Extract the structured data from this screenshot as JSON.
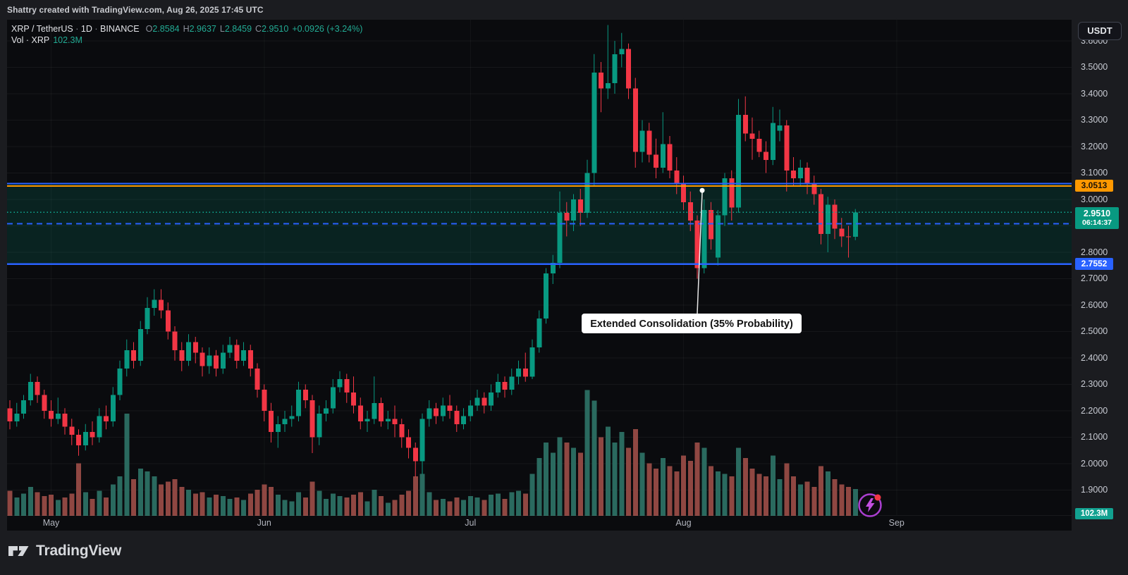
{
  "header": {
    "attribution": "Shattry created with TradingView.com, Aug 26, 2025 17:45 UTC"
  },
  "legend": {
    "symbol": "XRP / TetherUS",
    "separator": "·",
    "interval": "1D",
    "exchange": "BINANCE",
    "o_label": "O",
    "o_value": "2.8584",
    "h_label": "H",
    "h_value": "2.9637",
    "l_label": "L",
    "l_value": "2.8459",
    "c_label": "C",
    "c_value": "2.9510",
    "change": "+0.0926 (+3.24%)",
    "vol_label": "Vol · XRP",
    "vol_value": "102.3M"
  },
  "axis": {
    "currency_button": "USDT",
    "badges": {
      "resistance": "3.0513",
      "current_price": "2.9510",
      "countdown": "06:14:37",
      "support": "2.7552",
      "volume": "102.3M"
    }
  },
  "annotation": {
    "text": "Extended Consolidation (35% Probability)",
    "anchor_price": 3.034
  },
  "footer": {
    "brand": "TradingView"
  },
  "chart_data": {
    "type": "candlestick",
    "title": "XRP / TetherUS · 1D · BINANCE",
    "quote_currency": "USDT",
    "legend_position": "top-left",
    "grid": true,
    "price_axis": {
      "min": 1.9,
      "max": 3.6,
      "step": 0.1,
      "decimals": 4
    },
    "time_axis": {
      "months": [
        "May",
        "Jun",
        "Jul",
        "Aug",
        "Sep"
      ],
      "month_start_indices": [
        6,
        37,
        67,
        98,
        129
      ]
    },
    "last_bar": {
      "open": 2.8584,
      "high": 2.9637,
      "low": 2.8459,
      "close": 2.951,
      "change": 0.0926,
      "change_pct": 3.24,
      "volume_label": "102.3M"
    },
    "colors": {
      "up": "#089981",
      "down": "#f23645",
      "vol_up": "#2a6a5f",
      "vol_down": "#8f4742",
      "zone_fill": "rgba(8,153,129,0.17)",
      "blue_line": "#2962ff",
      "orange_line": "#ff9800",
      "teal_line": "#0fae96"
    },
    "levels": [
      {
        "name": "zone-top",
        "price": 3.06,
        "style": "solid",
        "color": "#2962ff",
        "width": 2.2
      },
      {
        "name": "alert-line",
        "price": 3.0513,
        "style": "solid",
        "color": "#ff9800",
        "width": 2
      },
      {
        "name": "current-price",
        "price": 2.951,
        "style": "dotted",
        "color": "#0fae96",
        "width": 1.6
      },
      {
        "name": "zone-midline",
        "price": 2.9076,
        "style": "dashed",
        "color": "#2962ff",
        "width": 2
      },
      {
        "name": "support",
        "price": 2.7552,
        "style": "solid",
        "color": "#2962ff",
        "width": 2.2
      }
    ],
    "zone": {
      "top": 3.06,
      "bottom": 2.7552
    },
    "candles_format": [
      "open",
      "high",
      "low",
      "close",
      "volume_millions"
    ],
    "candles": [
      [
        2.21,
        2.24,
        2.13,
        2.16,
        95
      ],
      [
        2.16,
        2.23,
        2.14,
        2.19,
        70
      ],
      [
        2.19,
        2.26,
        2.17,
        2.24,
        85
      ],
      [
        2.24,
        2.34,
        2.22,
        2.31,
        110
      ],
      [
        2.31,
        2.33,
        2.23,
        2.26,
        90
      ],
      [
        2.26,
        2.28,
        2.17,
        2.2,
        75
      ],
      [
        2.2,
        2.24,
        2.14,
        2.17,
        80
      ],
      [
        2.17,
        2.25,
        2.15,
        2.19,
        60
      ],
      [
        2.19,
        2.21,
        2.11,
        2.14,
        70
      ],
      [
        2.14,
        2.17,
        2.07,
        2.11,
        85
      ],
      [
        2.11,
        2.13,
        2.03,
        2.07,
        200
      ],
      [
        2.07,
        2.15,
        2.05,
        2.12,
        90
      ],
      [
        2.12,
        2.16,
        2.07,
        2.1,
        65
      ],
      [
        2.1,
        2.21,
        2.08,
        2.18,
        95
      ],
      [
        2.18,
        2.22,
        2.13,
        2.16,
        70
      ],
      [
        2.16,
        2.29,
        2.14,
        2.26,
        120
      ],
      [
        2.26,
        2.39,
        2.24,
        2.36,
        150
      ],
      [
        2.36,
        2.47,
        2.33,
        2.43,
        390
      ],
      [
        2.43,
        2.46,
        2.36,
        2.39,
        140
      ],
      [
        2.39,
        2.54,
        2.37,
        2.51,
        180
      ],
      [
        2.51,
        2.63,
        2.49,
        2.59,
        170
      ],
      [
        2.59,
        2.66,
        2.56,
        2.62,
        150
      ],
      [
        2.62,
        2.66,
        2.55,
        2.58,
        120
      ],
      [
        2.58,
        2.61,
        2.47,
        2.5,
        130
      ],
      [
        2.5,
        2.52,
        2.39,
        2.43,
        140
      ],
      [
        2.43,
        2.46,
        2.35,
        2.39,
        110
      ],
      [
        2.39,
        2.49,
        2.37,
        2.46,
        100
      ],
      [
        2.46,
        2.48,
        2.38,
        2.42,
        85
      ],
      [
        2.42,
        2.44,
        2.33,
        2.37,
        90
      ],
      [
        2.37,
        2.44,
        2.34,
        2.41,
        70
      ],
      [
        2.41,
        2.43,
        2.33,
        2.36,
        80
      ],
      [
        2.36,
        2.45,
        2.34,
        2.42,
        75
      ],
      [
        2.42,
        2.48,
        2.4,
        2.45,
        65
      ],
      [
        2.45,
        2.47,
        2.36,
        2.39,
        70
      ],
      [
        2.39,
        2.46,
        2.37,
        2.43,
        60
      ],
      [
        2.43,
        2.45,
        2.33,
        2.36,
        85
      ],
      [
        2.36,
        2.38,
        2.25,
        2.28,
        100
      ],
      [
        2.28,
        2.3,
        2.16,
        2.2,
        120
      ],
      [
        2.2,
        2.23,
        2.08,
        2.12,
        110
      ],
      [
        2.12,
        2.18,
        2.06,
        2.15,
        80
      ],
      [
        2.15,
        2.2,
        2.12,
        2.17,
        60
      ],
      [
        2.17,
        2.22,
        2.14,
        2.18,
        55
      ],
      [
        2.18,
        2.31,
        2.16,
        2.28,
        90
      ],
      [
        2.28,
        2.3,
        2.21,
        2.24,
        70
      ],
      [
        2.24,
        2.26,
        2.04,
        2.1,
        130
      ],
      [
        2.1,
        2.22,
        2.07,
        2.19,
        95
      ],
      [
        2.19,
        2.24,
        2.16,
        2.21,
        65
      ],
      [
        2.21,
        2.32,
        2.19,
        2.29,
        85
      ],
      [
        2.29,
        2.35,
        2.27,
        2.32,
        75
      ],
      [
        2.32,
        2.34,
        2.23,
        2.27,
        70
      ],
      [
        2.27,
        2.33,
        2.19,
        2.22,
        80
      ],
      [
        2.22,
        2.25,
        2.13,
        2.16,
        90
      ],
      [
        2.16,
        2.2,
        2.12,
        2.17,
        55
      ],
      [
        2.17,
        2.33,
        2.15,
        2.23,
        100
      ],
      [
        2.23,
        2.25,
        2.14,
        2.16,
        75
      ],
      [
        2.16,
        2.2,
        2.13,
        2.17,
        50
      ],
      [
        2.17,
        2.22,
        2.1,
        2.15,
        60
      ],
      [
        2.15,
        2.17,
        2.06,
        2.1,
        80
      ],
      [
        2.1,
        2.13,
        2.02,
        2.06,
        95
      ],
      [
        2.06,
        2.08,
        1.95,
        2.01,
        150
      ],
      [
        2.01,
        2.19,
        1.96,
        2.17,
        160
      ],
      [
        2.17,
        2.24,
        2.14,
        2.21,
        90
      ],
      [
        2.21,
        2.23,
        2.15,
        2.18,
        60
      ],
      [
        2.18,
        2.25,
        2.16,
        2.22,
        65
      ],
      [
        2.22,
        2.26,
        2.17,
        2.2,
        55
      ],
      [
        2.2,
        2.22,
        2.12,
        2.15,
        70
      ],
      [
        2.15,
        2.21,
        2.13,
        2.18,
        60
      ],
      [
        2.18,
        2.24,
        2.16,
        2.22,
        75
      ],
      [
        2.22,
        2.28,
        2.2,
        2.25,
        70
      ],
      [
        2.25,
        2.27,
        2.19,
        2.22,
        60
      ],
      [
        2.22,
        2.3,
        2.2,
        2.27,
        80
      ],
      [
        2.27,
        2.34,
        2.25,
        2.31,
        85
      ],
      [
        2.31,
        2.33,
        2.25,
        2.28,
        65
      ],
      [
        2.28,
        2.36,
        2.26,
        2.33,
        90
      ],
      [
        2.33,
        2.39,
        2.3,
        2.36,
        95
      ],
      [
        2.36,
        2.42,
        2.31,
        2.33,
        85
      ],
      [
        2.33,
        2.47,
        2.32,
        2.44,
        160
      ],
      [
        2.44,
        2.58,
        2.42,
        2.55,
        220
      ],
      [
        2.55,
        2.74,
        2.53,
        2.72,
        280
      ],
      [
        2.72,
        2.79,
        2.68,
        2.76,
        240
      ],
      [
        2.76,
        3.03,
        2.74,
        2.95,
        300
      ],
      [
        2.95,
        2.99,
        2.86,
        2.92,
        280
      ],
      [
        2.92,
        3.02,
        2.88,
        3.0,
        260
      ],
      [
        3.0,
        3.04,
        2.9,
        2.95,
        240
      ],
      [
        2.95,
        3.15,
        2.93,
        3.1,
        480
      ],
      [
        3.1,
        3.55,
        3.05,
        3.48,
        440
      ],
      [
        3.48,
        3.52,
        3.33,
        3.42,
        300
      ],
      [
        3.42,
        3.66,
        3.38,
        3.44,
        340
      ],
      [
        3.44,
        3.6,
        3.4,
        3.55,
        280
      ],
      [
        3.55,
        3.63,
        3.5,
        3.57,
        320
      ],
      [
        3.57,
        3.59,
        3.38,
        3.42,
        260
      ],
      [
        3.42,
        3.46,
        3.12,
        3.18,
        330
      ],
      [
        3.18,
        3.3,
        3.14,
        3.26,
        240
      ],
      [
        3.26,
        3.29,
        3.14,
        3.17,
        200
      ],
      [
        3.17,
        3.23,
        3.08,
        3.12,
        180
      ],
      [
        3.12,
        3.33,
        3.1,
        3.21,
        220
      ],
      [
        3.21,
        3.24,
        3.08,
        3.11,
        190
      ],
      [
        3.11,
        3.16,
        3.02,
        3.06,
        170
      ],
      [
        3.06,
        3.09,
        2.96,
        2.99,
        230
      ],
      [
        2.99,
        3.03,
        2.88,
        2.92,
        210
      ],
      [
        2.92,
        2.94,
        2.7,
        2.74,
        280
      ],
      [
        2.74,
        3.0,
        2.72,
        2.96,
        260
      ],
      [
        2.96,
        2.99,
        2.81,
        2.85,
        190
      ],
      [
        2.78,
        2.96,
        2.75,
        2.94,
        170
      ],
      [
        2.94,
        3.1,
        2.9,
        3.08,
        160
      ],
      [
        3.08,
        3.11,
        2.92,
        2.97,
        150
      ],
      [
        2.97,
        3.38,
        2.95,
        3.32,
        260
      ],
      [
        3.32,
        3.39,
        3.22,
        3.25,
        220
      ],
      [
        3.25,
        3.31,
        3.15,
        3.23,
        180
      ],
      [
        3.23,
        3.26,
        3.16,
        3.18,
        160
      ],
      [
        3.18,
        3.22,
        3.1,
        3.15,
        150
      ],
      [
        3.15,
        3.35,
        3.13,
        3.29,
        230
      ],
      [
        3.26,
        3.34,
        3.22,
        3.28,
        140
      ],
      [
        3.28,
        3.3,
        3.03,
        3.11,
        200
      ],
      [
        3.11,
        3.16,
        3.05,
        3.08,
        150
      ],
      [
        3.08,
        3.15,
        3.05,
        3.12,
        120
      ],
      [
        3.12,
        3.14,
        3.02,
        3.06,
        130
      ],
      [
        3.06,
        3.09,
        2.98,
        3.02,
        110
      ],
      [
        3.02,
        3.04,
        2.83,
        2.87,
        190
      ],
      [
        2.87,
        3.01,
        2.8,
        2.98,
        170
      ],
      [
        2.98,
        3.0,
        2.85,
        2.89,
        140
      ],
      [
        2.89,
        2.93,
        2.82,
        2.86,
        120
      ],
      [
        2.86,
        2.9,
        2.78,
        2.8584,
        110
      ],
      [
        2.8584,
        2.9637,
        2.8459,
        2.951,
        102.3
      ]
    ]
  }
}
